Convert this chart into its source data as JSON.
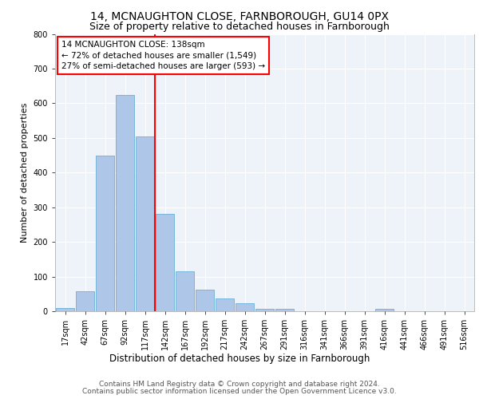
{
  "title1": "14, MCNAUGHTON CLOSE, FARNBOROUGH, GU14 0PX",
  "title2": "Size of property relative to detached houses in Farnborough",
  "xlabel": "Distribution of detached houses by size in Farnborough",
  "ylabel": "Number of detached properties",
  "categories": [
    "17sqm",
    "42sqm",
    "67sqm",
    "92sqm",
    "117sqm",
    "142sqm",
    "167sqm",
    "192sqm",
    "217sqm",
    "242sqm",
    "267sqm",
    "291sqm",
    "316sqm",
    "341sqm",
    "366sqm",
    "391sqm",
    "416sqm",
    "441sqm",
    "466sqm",
    "491sqm",
    "516sqm"
  ],
  "bar_heights": [
    10,
    57,
    448,
    623,
    505,
    280,
    116,
    62,
    36,
    24,
    8,
    6,
    0,
    0,
    0,
    0,
    6,
    0,
    0,
    0,
    0
  ],
  "bar_color": "#aec6e8",
  "bar_edge_color": "#6aaed6",
  "vline_color": "red",
  "annotation_text": "14 MCNAUGHTON CLOSE: 138sqm\n← 72% of detached houses are smaller (1,549)\n27% of semi-detached houses are larger (593) →",
  "ylim": [
    0,
    800
  ],
  "yticks": [
    0,
    100,
    200,
    300,
    400,
    500,
    600,
    700,
    800
  ],
  "background_color": "#eef2f9",
  "footer1": "Contains HM Land Registry data © Crown copyright and database right 2024.",
  "footer2": "Contains public sector information licensed under the Open Government Licence v3.0.",
  "title1_fontsize": 10,
  "title2_fontsize": 9,
  "xlabel_fontsize": 8.5,
  "ylabel_fontsize": 8,
  "tick_fontsize": 7,
  "footer_fontsize": 6.5,
  "annotation_fontsize": 7.5
}
